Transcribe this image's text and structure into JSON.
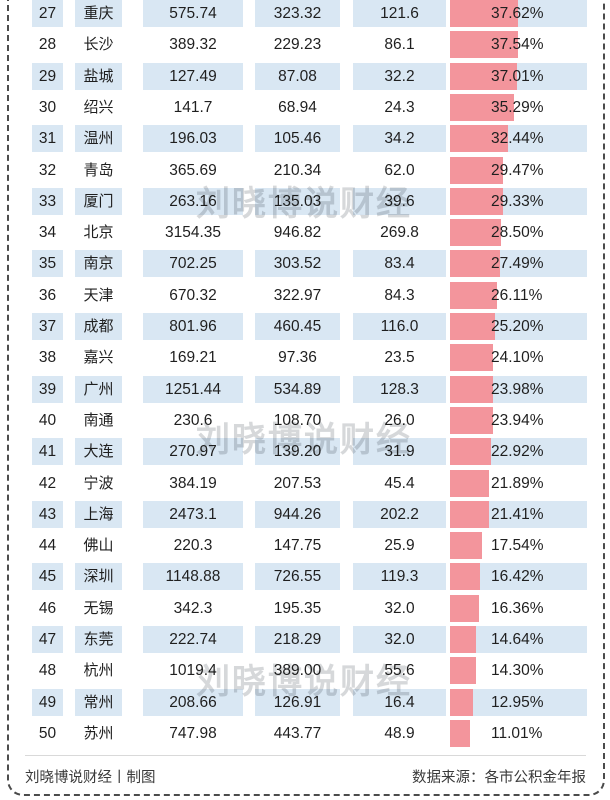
{
  "chart_data": {
    "type": "table",
    "title": "",
    "bar_column": "ratio",
    "bar_axis_note": "bar length proportional to ratio percent",
    "rows": [
      {
        "rank": "27",
        "city": "重庆",
        "v1": "575.74",
        "v2": "323.32",
        "v3": "121.6",
        "ratio": "37.62%"
      },
      {
        "rank": "28",
        "city": "长沙",
        "v1": "389.32",
        "v2": "229.23",
        "v3": "86.1",
        "ratio": "37.54%"
      },
      {
        "rank": "29",
        "city": "盐城",
        "v1": "127.49",
        "v2": "87.08",
        "v3": "32.2",
        "ratio": "37.01%"
      },
      {
        "rank": "30",
        "city": "绍兴",
        "v1": "141.7",
        "v2": "68.94",
        "v3": "24.3",
        "ratio": "35.29%"
      },
      {
        "rank": "31",
        "city": "温州",
        "v1": "196.03",
        "v2": "105.46",
        "v3": "34.2",
        "ratio": "32.44%"
      },
      {
        "rank": "32",
        "city": "青岛",
        "v1": "365.69",
        "v2": "210.34",
        "v3": "62.0",
        "ratio": "29.47%"
      },
      {
        "rank": "33",
        "city": "厦门",
        "v1": "263.16",
        "v2": "135.03",
        "v3": "39.6",
        "ratio": "29.33%"
      },
      {
        "rank": "34",
        "city": "北京",
        "v1": "3154.35",
        "v2": "946.82",
        "v3": "269.8",
        "ratio": "28.50%"
      },
      {
        "rank": "35",
        "city": "南京",
        "v1": "702.25",
        "v2": "303.52",
        "v3": "83.4",
        "ratio": "27.49%"
      },
      {
        "rank": "36",
        "city": "天津",
        "v1": "670.32",
        "v2": "322.97",
        "v3": "84.3",
        "ratio": "26.11%"
      },
      {
        "rank": "37",
        "city": "成都",
        "v1": "801.96",
        "v2": "460.45",
        "v3": "116.0",
        "ratio": "25.20%"
      },
      {
        "rank": "38",
        "city": "嘉兴",
        "v1": "169.21",
        "v2": "97.36",
        "v3": "23.5",
        "ratio": "24.10%"
      },
      {
        "rank": "39",
        "city": "广州",
        "v1": "1251.44",
        "v2": "534.89",
        "v3": "128.3",
        "ratio": "23.98%"
      },
      {
        "rank": "40",
        "city": "南通",
        "v1": "230.6",
        "v2": "108.70",
        "v3": "26.0",
        "ratio": "23.94%"
      },
      {
        "rank": "41",
        "city": "大连",
        "v1": "270.97",
        "v2": "139.20",
        "v3": "31.9",
        "ratio": "22.92%"
      },
      {
        "rank": "42",
        "city": "宁波",
        "v1": "384.19",
        "v2": "207.53",
        "v3": "45.4",
        "ratio": "21.89%"
      },
      {
        "rank": "43",
        "city": "上海",
        "v1": "2473.1",
        "v2": "944.26",
        "v3": "202.2",
        "ratio": "21.41%"
      },
      {
        "rank": "44",
        "city": "佛山",
        "v1": "220.3",
        "v2": "147.75",
        "v3": "25.9",
        "ratio": "17.54%"
      },
      {
        "rank": "45",
        "city": "深圳",
        "v1": "1148.88",
        "v2": "726.55",
        "v3": "119.3",
        "ratio": "16.42%"
      },
      {
        "rank": "46",
        "city": "无锡",
        "v1": "342.3",
        "v2": "195.35",
        "v3": "32.0",
        "ratio": "16.36%"
      },
      {
        "rank": "47",
        "city": "东莞",
        "v1": "222.74",
        "v2": "218.29",
        "v3": "32.0",
        "ratio": "14.64%"
      },
      {
        "rank": "48",
        "city": "杭州",
        "v1": "1019.4",
        "v2": "389.00",
        "v3": "55.6",
        "ratio": "14.30%"
      },
      {
        "rank": "49",
        "city": "常州",
        "v1": "208.66",
        "v2": "126.91",
        "v3": "16.4",
        "ratio": "12.95%"
      },
      {
        "rank": "50",
        "city": "苏州",
        "v1": "747.98",
        "v2": "443.77",
        "v3": "48.9",
        "ratio": "11.01%"
      }
    ]
  },
  "watermark": {
    "text": "刘晓博说财经"
  },
  "footer": {
    "credit": "刘晓博说财经丨制图",
    "source": "数据来源：各市公积金年报"
  },
  "colors": {
    "row_alt": "#d9e7f3",
    "bar": "#f3959c",
    "text": "#1f1f1f",
    "frame": "#4b4b4b"
  }
}
